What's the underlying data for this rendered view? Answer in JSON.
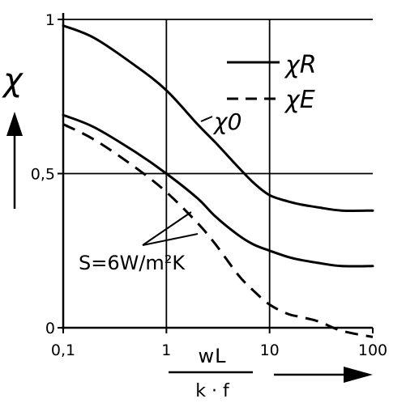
{
  "chart_data": {
    "type": "line",
    "xscale": "log",
    "xlim": [
      0.1,
      100
    ],
    "ylim": [
      0,
      1
    ],
    "grid": true,
    "x_ticks": [
      {
        "value": 0.1,
        "label": "0,1"
      },
      {
        "value": 1,
        "label": "1"
      },
      {
        "value": 10,
        "label": "10"
      },
      {
        "value": 100,
        "label": "100"
      }
    ],
    "y_ticks": [
      {
        "value": 0,
        "label": "0"
      },
      {
        "value": 0.5,
        "label": "0,5"
      },
      {
        "value": 1,
        "label": "1"
      }
    ],
    "xlabel": {
      "numerator": "wL",
      "denominator": "k · f"
    },
    "ylabel": "χ",
    "legend": {
      "placement": "top-right",
      "entries": [
        {
          "name": "χR",
          "style": "solid"
        },
        {
          "name": "χE",
          "style": "dashed"
        }
      ]
    },
    "annotations": {
      "chi0_label": "χ0",
      "s_label": "S=6W/m²K"
    },
    "series": [
      {
        "style": "solid",
        "x": [
          0.1,
          0.2,
          0.5,
          1,
          2,
          3,
          5,
          7,
          10,
          15,
          20,
          30,
          50,
          100
        ],
        "y": [
          0.98,
          0.94,
          0.85,
          0.77,
          0.66,
          0.6,
          0.52,
          0.47,
          0.43,
          0.41,
          0.4,
          0.39,
          0.38,
          0.38
        ]
      },
      {
        "style": "solid",
        "x": [
          0.1,
          0.2,
          0.5,
          1,
          2,
          3,
          5,
          7,
          10,
          15,
          20,
          30,
          50,
          100
        ],
        "y": [
          0.69,
          0.65,
          0.57,
          0.5,
          0.42,
          0.36,
          0.3,
          0.27,
          0.25,
          0.23,
          0.22,
          0.21,
          0.2,
          0.2
        ]
      },
      {
        "style": "dashed",
        "x": [
          0.1,
          0.2,
          0.5,
          1,
          2,
          3,
          5,
          7,
          10,
          15,
          20,
          30,
          50,
          100
        ],
        "y": [
          0.66,
          0.61,
          0.52,
          0.44,
          0.34,
          0.27,
          0.17,
          0.12,
          0.075,
          0.045,
          0.035,
          0.02,
          -0.01,
          -0.03
        ]
      }
    ]
  }
}
